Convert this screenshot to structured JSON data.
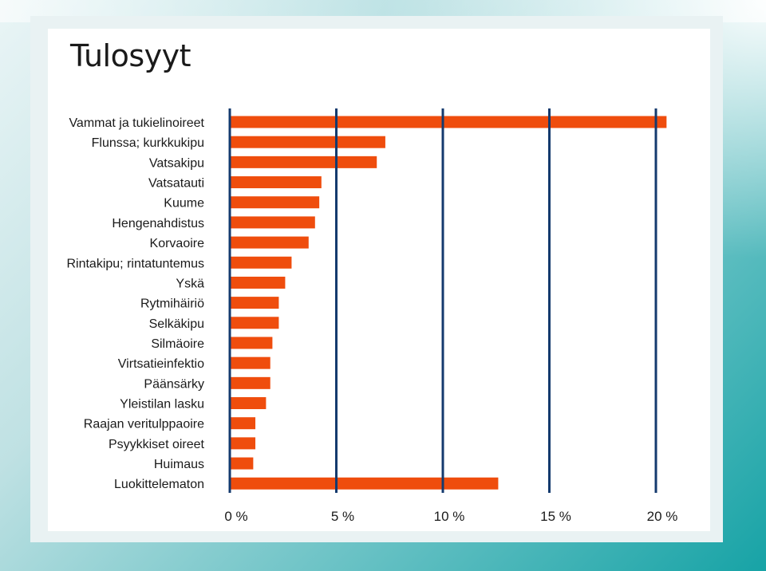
{
  "chart_data": {
    "type": "bar",
    "orientation": "horizontal",
    "title": "Tulosyyt",
    "categories": [
      "Vammat ja tukielinoireet",
      "Flunssa; kurkkukipu",
      "Vatsakipu",
      "Vatsatauti",
      "Kuume",
      "Hengenahdistus",
      "Korvaoire",
      "Rintakipu; rintatuntemus",
      "Yskä",
      "Rytmihäiriö",
      "Selkäkipu",
      "Silmäoire",
      "Virtsatieinfektio",
      "Päänsärky",
      "Yleistilan lasku",
      "Raajan veritulppaoire",
      "Psyykkiset oireet",
      "Huimaus",
      "Luokittelematon"
    ],
    "values": [
      20.5,
      7.3,
      6.9,
      4.3,
      4.2,
      4.0,
      3.7,
      2.9,
      2.6,
      2.3,
      2.3,
      2.0,
      1.9,
      1.9,
      1.7,
      1.2,
      1.2,
      1.1,
      12.6
    ],
    "xlim": [
      0,
      20
    ],
    "xticks": [
      0,
      5,
      10,
      15,
      20
    ],
    "xtick_labels": [
      "0 %",
      "5 %",
      "10 %",
      "15 %",
      "20 %"
    ],
    "bar_color": "#ef4d0d",
    "gridline_color": "#143a6e",
    "grid": true
  }
}
